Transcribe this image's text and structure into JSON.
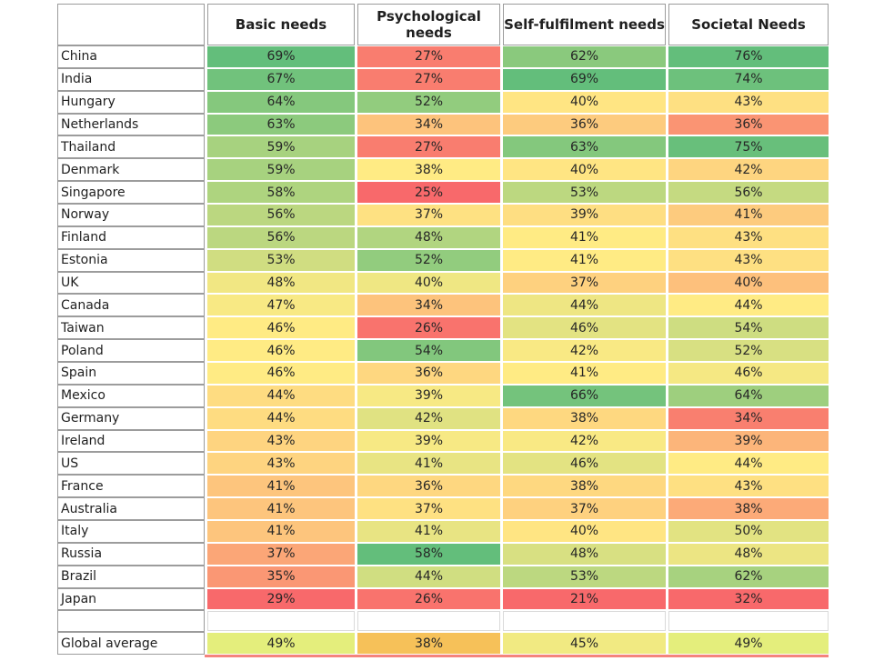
{
  "chart_data": {
    "type": "heatmap",
    "title": "",
    "columns": [
      "Basic needs",
      "Psychological needs",
      "Self-fulfilment needs",
      "Societal Needs"
    ],
    "rows": [
      {
        "label": "China",
        "values": [
          69,
          27,
          62,
          76
        ]
      },
      {
        "label": "India",
        "values": [
          67,
          27,
          69,
          74
        ]
      },
      {
        "label": "Hungary",
        "values": [
          64,
          52,
          40,
          43
        ]
      },
      {
        "label": "Netherlands",
        "values": [
          63,
          34,
          36,
          36
        ]
      },
      {
        "label": "Thailand",
        "values": [
          59,
          27,
          63,
          75
        ]
      },
      {
        "label": "Denmark",
        "values": [
          59,
          38,
          40,
          42
        ]
      },
      {
        "label": "Singapore",
        "values": [
          58,
          25,
          53,
          56
        ]
      },
      {
        "label": "Norway",
        "values": [
          56,
          37,
          39,
          41
        ]
      },
      {
        "label": "Finland",
        "values": [
          56,
          48,
          41,
          43
        ]
      },
      {
        "label": "Estonia",
        "values": [
          53,
          52,
          41,
          43
        ]
      },
      {
        "label": "UK",
        "values": [
          48,
          40,
          37,
          40
        ]
      },
      {
        "label": "Canada",
        "values": [
          47,
          34,
          44,
          44
        ]
      },
      {
        "label": "Taiwan",
        "values": [
          46,
          26,
          46,
          54
        ]
      },
      {
        "label": "Poland",
        "values": [
          46,
          54,
          42,
          52
        ]
      },
      {
        "label": "Spain",
        "values": [
          46,
          36,
          41,
          46
        ]
      },
      {
        "label": "Mexico",
        "values": [
          44,
          39,
          66,
          64
        ]
      },
      {
        "label": "Germany",
        "values": [
          44,
          42,
          38,
          34
        ]
      },
      {
        "label": "Ireland",
        "values": [
          43,
          39,
          42,
          39
        ]
      },
      {
        "label": "US",
        "values": [
          43,
          41,
          46,
          44
        ]
      },
      {
        "label": "France",
        "values": [
          41,
          36,
          38,
          43
        ]
      },
      {
        "label": "Australia",
        "values": [
          41,
          37,
          37,
          38
        ]
      },
      {
        "label": "Italy",
        "values": [
          41,
          41,
          40,
          50
        ]
      },
      {
        "label": "Russia",
        "values": [
          37,
          58,
          48,
          48
        ]
      },
      {
        "label": "Brazil",
        "values": [
          35,
          44,
          53,
          62
        ]
      },
      {
        "label": "Japan",
        "values": [
          29,
          26,
          21,
          32
        ]
      }
    ],
    "footer_row": {
      "label": "Global average",
      "values": [
        49,
        38,
        45,
        49
      ]
    },
    "footer_colors": [
      "#e4ee7c",
      "#f6c159",
      "#f1ea82",
      "#e4ee7c"
    ],
    "value_format": "percent",
    "color_scale": {
      "scope": "per-column",
      "midpoint": "median",
      "min_color": "#F8696B",
      "mid_color": "#FFEB84",
      "max_color": "#63BE7B"
    },
    "legend": "none"
  },
  "styles": {
    "grid_border_color": "#9c9c9c",
    "empty_cell_border_color": "#dadada",
    "header_text_color": "#1f1f1f",
    "value_text_color": "#262626",
    "bottom_strip_color": "#f5837c",
    "background": "#ffffff"
  }
}
